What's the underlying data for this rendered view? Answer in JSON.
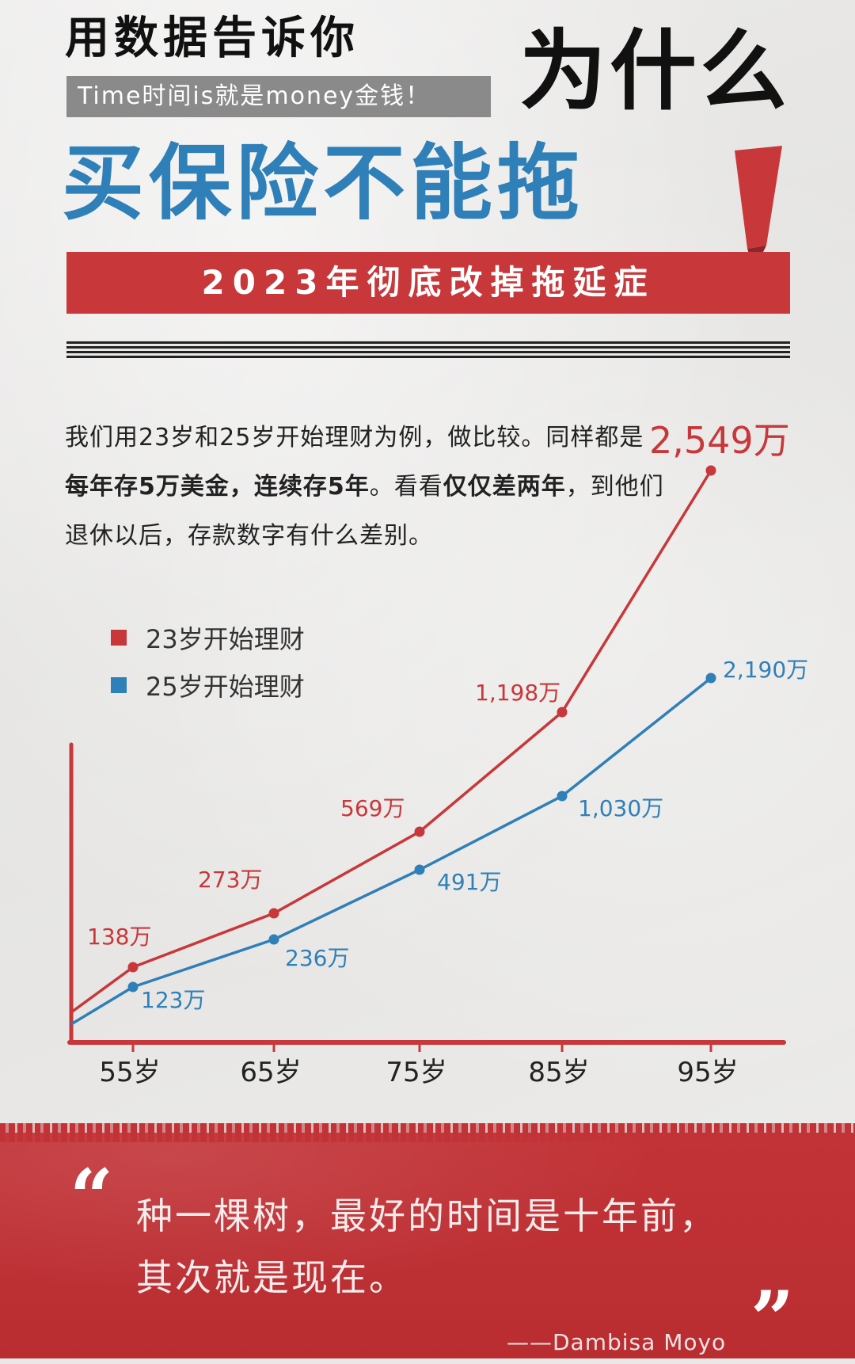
{
  "header": {
    "line1": "用数据告诉你",
    "subtitle": "Time时间is就是money金钱！",
    "line2": "为什么",
    "line3": "买保险不能拖",
    "banner": "2023年彻底改掉拖延症"
  },
  "intro": {
    "p1": "我们用23岁和25岁开始理财为例，做比较。同样都是",
    "b1": "每年存5万美金，连续存5年",
    "p2": "。看看",
    "b2": "仅仅差两年",
    "p3": "，到他们退休以后，存款数字有什么差别。"
  },
  "legend": [
    {
      "label": "23岁开始理财",
      "color": "#c8373a"
    },
    {
      "label": "25岁开始理财",
      "color": "#2f7fb8"
    }
  ],
  "chart_data": {
    "type": "line",
    "categories": [
      "55岁",
      "65岁",
      "75岁",
      "85岁",
      "95岁"
    ],
    "series": [
      {
        "name": "23岁开始理财",
        "color": "#c8373a",
        "values": [
          138,
          273,
          569,
          1198,
          2549
        ],
        "labels": [
          "138万",
          "273万",
          "569万",
          "1,198万",
          "2,549万"
        ]
      },
      {
        "name": "25岁开始理财",
        "color": "#2f7fb8",
        "values": [
          123,
          236,
          491,
          1030,
          2190
        ],
        "labels": [
          "123万",
          "236万",
          "491万",
          "1,030万",
          "2,190万"
        ]
      }
    ],
    "xlabel": "",
    "ylabel": "",
    "unit": "万",
    "axis_color": "#c8373a",
    "grid": false,
    "legend_position": "top-left"
  },
  "quote": {
    "open_mark": "“",
    "line1": "种一棵树，最好的时间是十年前，",
    "line2": "其次就是现在。",
    "close_mark": "”",
    "author": "——Dambisa Moyo"
  }
}
